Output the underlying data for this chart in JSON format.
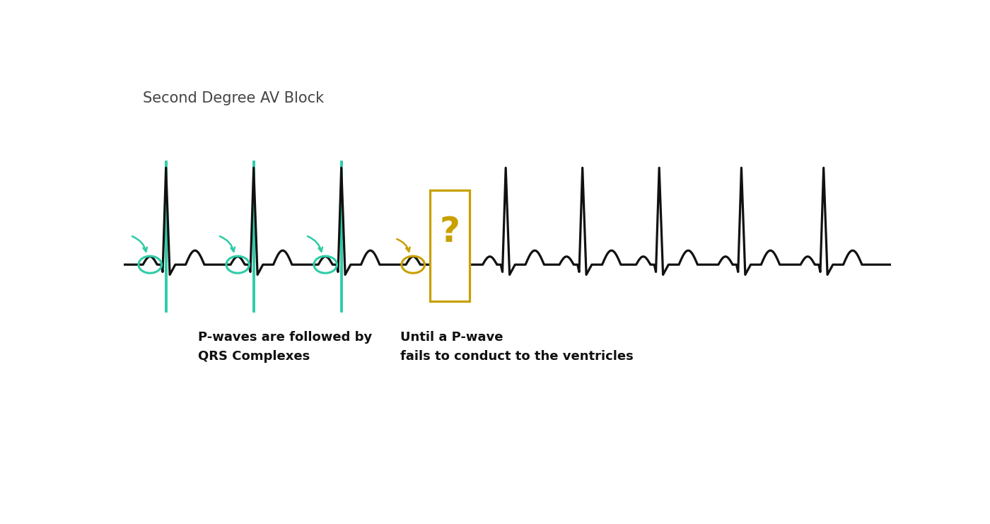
{
  "title": "Second Degree AV Block",
  "title_color": "#444444",
  "title_fontsize": 15,
  "bg_color": "#ffffff",
  "ecg_color": "#111111",
  "teal_color": "#2dcca7",
  "gold_color": "#c8a000",
  "label1": "P-waves are followed by\nQRS Complexes",
  "label2": "Until a P-wave\nfails to conduct to the ventricles",
  "label_fontsize": 13,
  "label_color": "#111111",
  "baseline_y": 3.5,
  "ylim_min": -1.5,
  "ylim_max": 8.5,
  "xlim_min": 0,
  "xlim_max": 14
}
